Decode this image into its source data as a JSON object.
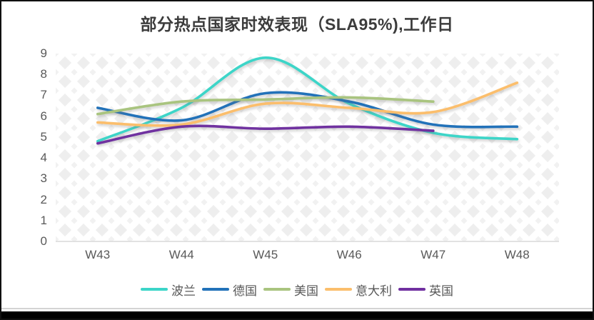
{
  "chart_data": {
    "type": "line",
    "title": "部分热点国家时效表现（SLA95%),工作日",
    "categories": [
      "W43",
      "W44",
      "W45",
      "W46",
      "W47",
      "W48"
    ],
    "series": [
      {
        "name": "波兰",
        "color": "#3cd5c8",
        "values": [
          4.8,
          6.4,
          8.8,
          6.6,
          5.2,
          4.9
        ]
      },
      {
        "name": "德国",
        "color": "#2272b9",
        "values": [
          6.4,
          5.8,
          7.1,
          6.7,
          5.6,
          5.5
        ]
      },
      {
        "name": "美国",
        "color": "#a9c47f",
        "values": [
          6.1,
          6.7,
          6.8,
          6.9,
          6.7,
          null
        ]
      },
      {
        "name": "意大利",
        "color": "#fbbe6c",
        "values": [
          5.7,
          5.6,
          6.6,
          6.4,
          6.2,
          7.6
        ]
      },
      {
        "name": "英国",
        "color": "#7030a0",
        "values": [
          4.7,
          5.5,
          5.4,
          5.5,
          5.3,
          null
        ]
      }
    ],
    "y_axis": {
      "min": 0,
      "max": 9,
      "step": 1,
      "tick_labels": [
        "0",
        "1",
        "2",
        "3",
        "4",
        "5",
        "6",
        "7",
        "8",
        "9"
      ]
    },
    "x_axis": {
      "tick_labels": [
        "W43",
        "W44",
        "W45",
        "W46",
        "W47",
        "W48"
      ]
    },
    "legend_position": "bottom",
    "grid": false,
    "plot_background": "diamond-pattern",
    "line_style": "smooth"
  },
  "styles": {
    "title_color": "#3c3c3c",
    "axis_label_color": "#595959",
    "axis_line_color": "#d9d9d9",
    "pattern_color_large": "#eeeeee",
    "pattern_color_small": "#f1f1f1",
    "background": "#ffffff",
    "frame_border": "#101010",
    "bottom_bar": "#000000"
  }
}
